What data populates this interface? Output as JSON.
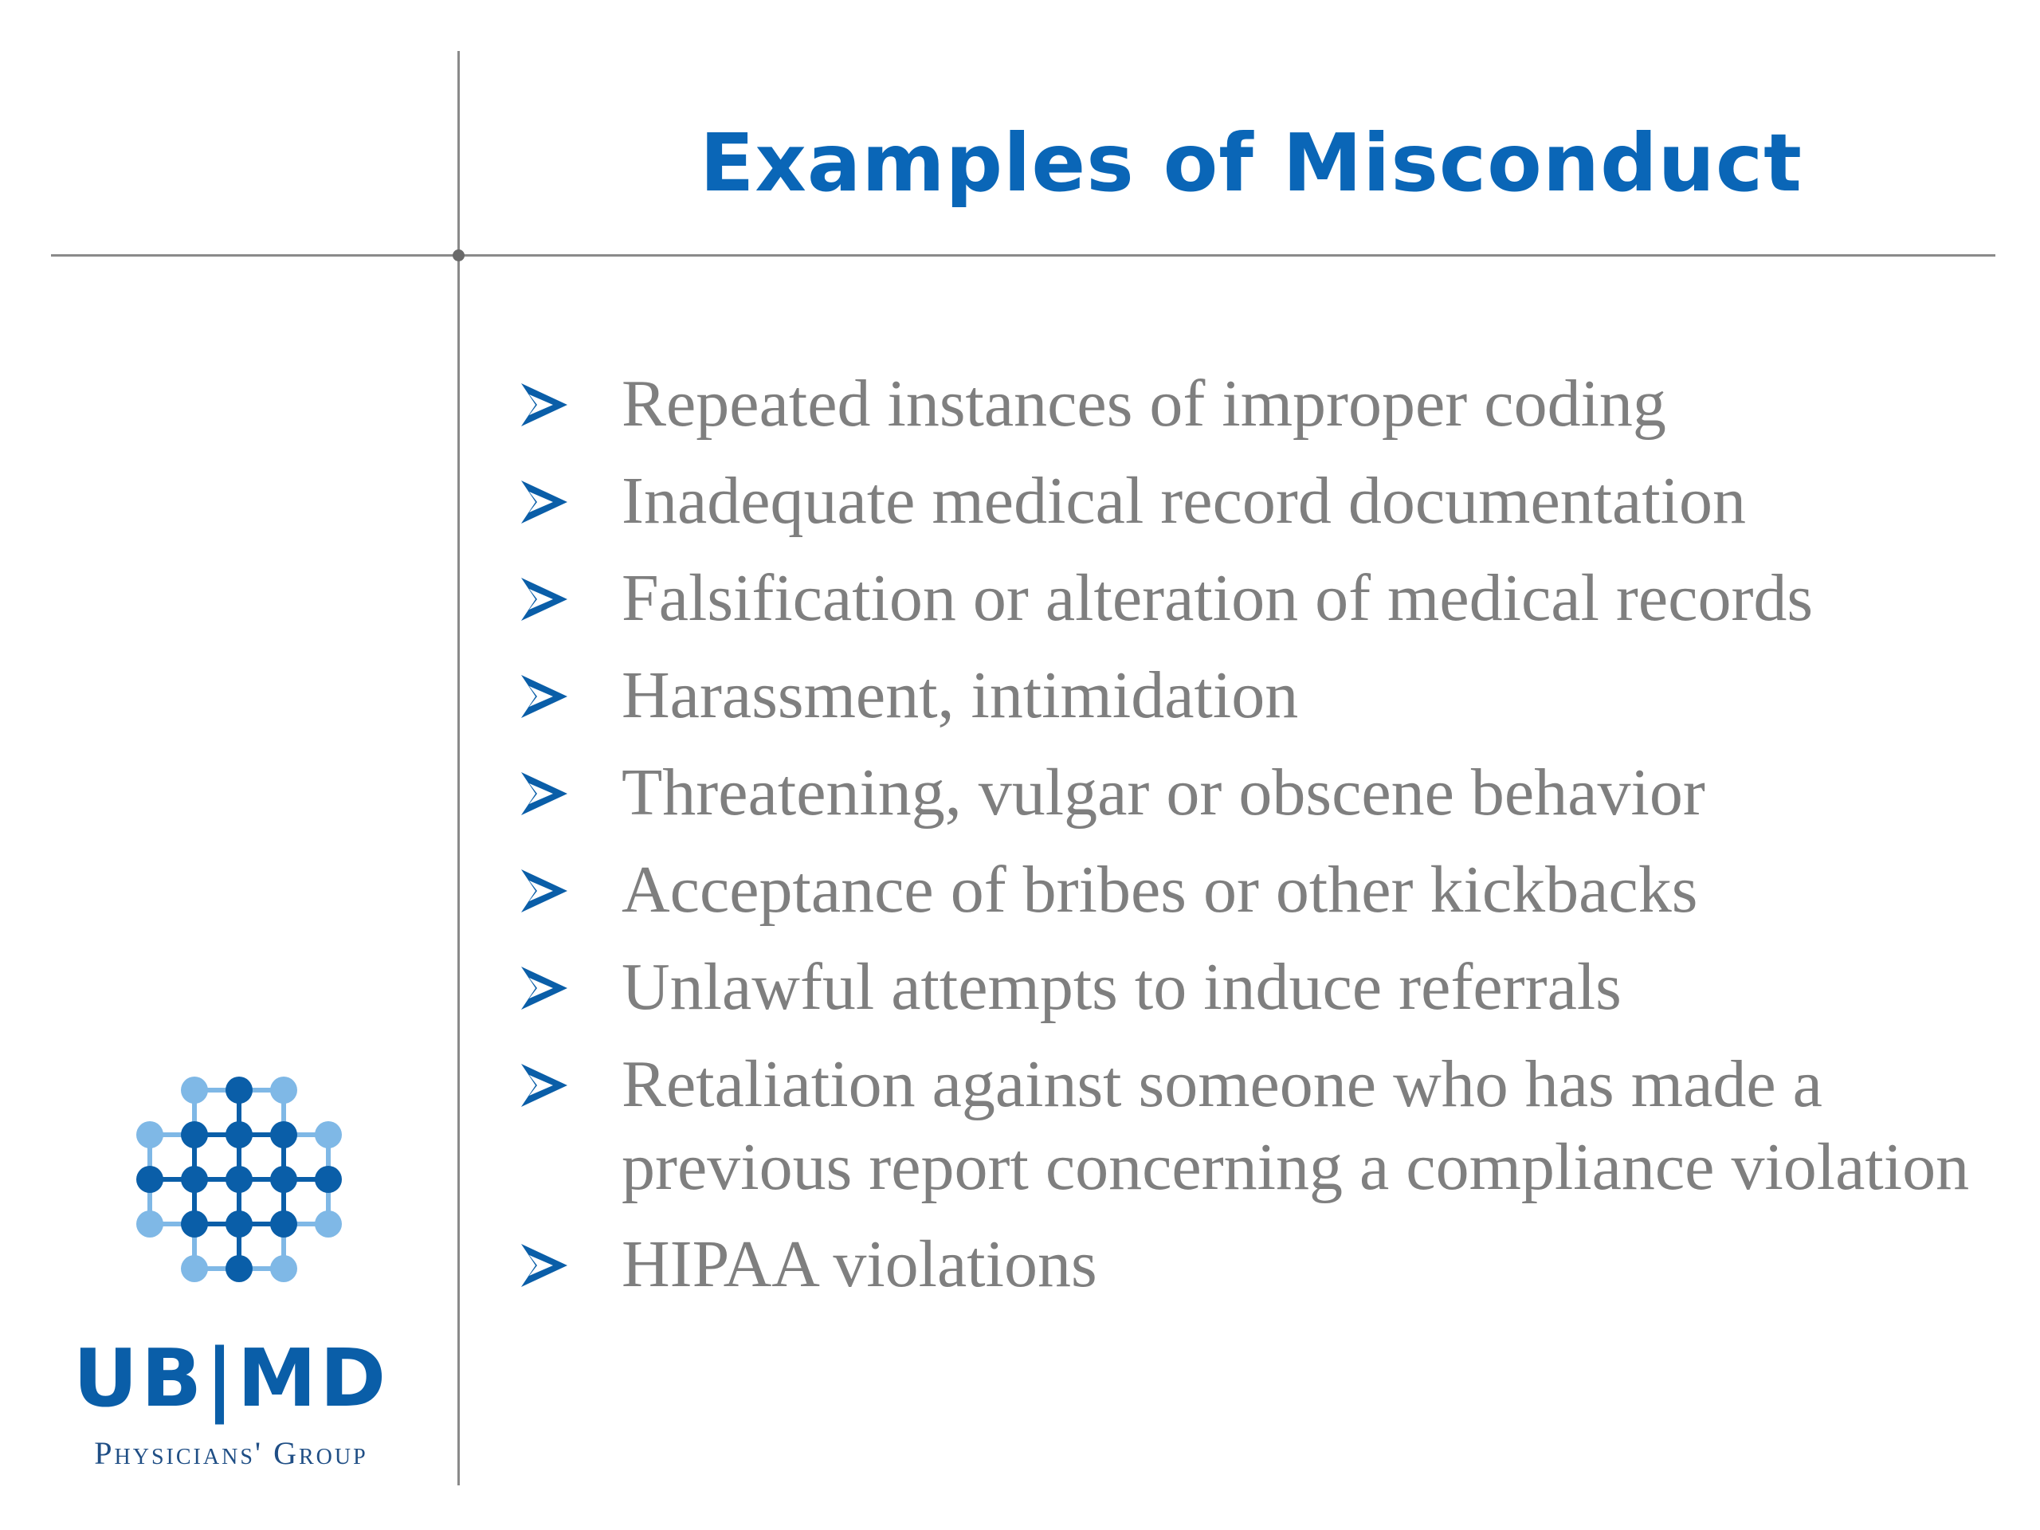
{
  "slide": {
    "title": "Examples of Misconduct",
    "bullets": [
      "Repeated instances of improper coding",
      "Inadequate medical record documentation",
      "Falsification or alteration of medical records",
      "Harassment, intimidation",
      "Threatening, vulgar or obscene behavior",
      "Acceptance of bribes or other kickbacks",
      "Unlawful attempts to induce referrals",
      "Retaliation against someone who has made a previous report concerning a compliance violation",
      "HIPAA violations"
    ],
    "bullet_icon": "arrow-bullet-icon"
  },
  "logo": {
    "wordmark": "UB|MD",
    "subtitle": "Physicians' Group",
    "icon": "molecule-grid-icon"
  },
  "colors": {
    "title": "#0a66b7",
    "text": "#7f7f7f",
    "rule": "#8a8a8a",
    "logo_dark": "#0a5ea8",
    "logo_light": "#7fb8e6"
  }
}
